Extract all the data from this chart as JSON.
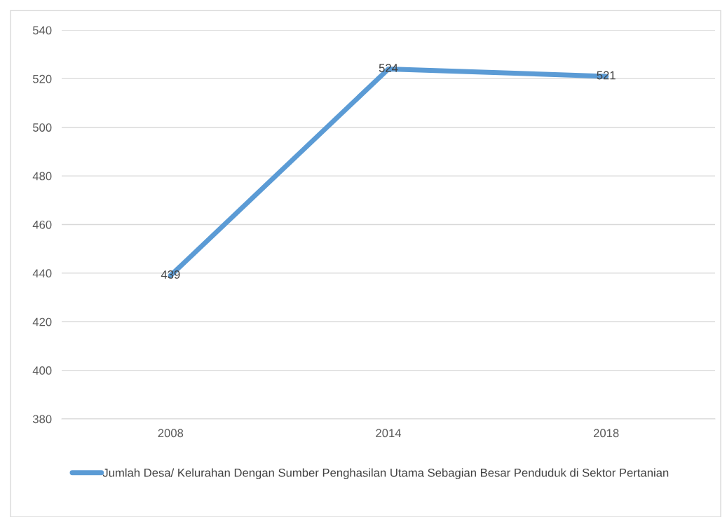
{
  "chart_data": {
    "type": "line",
    "categories": [
      "2008",
      "2014",
      "2018"
    ],
    "series": [
      {
        "name": "Jumlah Desa/ Kelurahan Dengan Sumber Penghasilan Utama Sebagian Besar Penduduk di Sektor Pertanian",
        "color": "#5b9bd5",
        "values": [
          439,
          524,
          521
        ]
      }
    ],
    "ylim": [
      380,
      540
    ],
    "yticks": [
      380,
      400,
      420,
      440,
      460,
      480,
      500,
      520,
      540
    ],
    "grid": "y",
    "legend": "bottom",
    "data_labels": true,
    "marker": "none",
    "line_style": "solid"
  }
}
